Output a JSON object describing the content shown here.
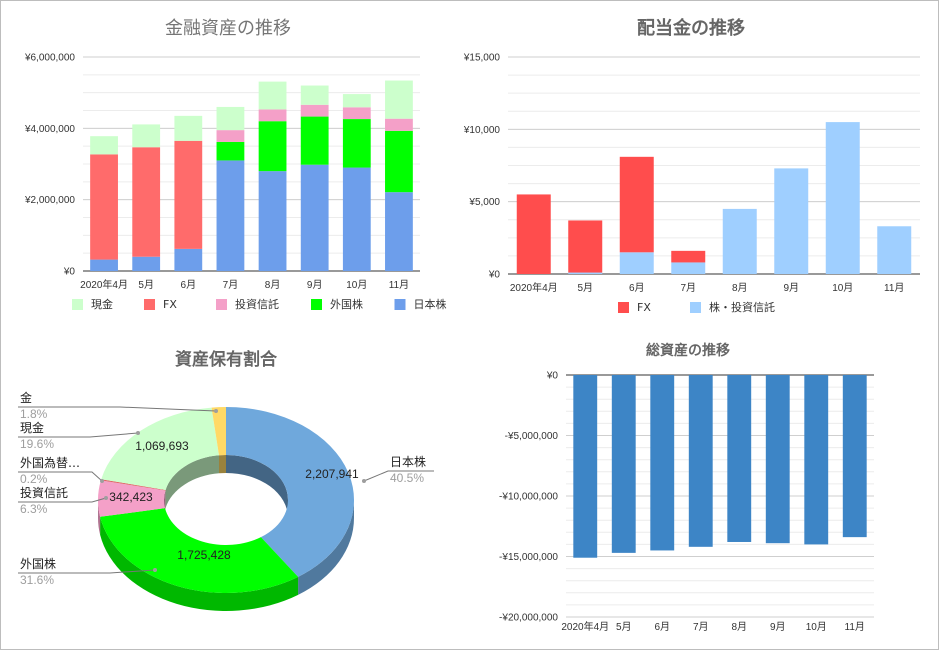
{
  "chart_data": [
    {
      "id": "financial-assets",
      "type": "bar",
      "stacked": true,
      "title": "金融資産の推移",
      "categories": [
        "2020年4月",
        "5月",
        "6月",
        "7月",
        "8月",
        "9月",
        "10月",
        "11月"
      ],
      "series": [
        {
          "name": "日本株",
          "color": "#6d9eeb",
          "values": [
            320000,
            400000,
            620000,
            3100000,
            2800000,
            2980000,
            2900000,
            2210000
          ]
        },
        {
          "name": "外国株",
          "color": "#00ff00",
          "values": [
            0,
            0,
            0,
            520000,
            1400000,
            1350000,
            1360000,
            1720000
          ]
        },
        {
          "name": "投資信託",
          "color": "#f4a0c8",
          "values": [
            0,
            0,
            0,
            330000,
            330000,
            330000,
            330000,
            340000
          ]
        },
        {
          "name": "FX",
          "color": "#ff6b6b",
          "values": [
            2950000,
            3070000,
            3030000,
            0,
            0,
            0,
            0,
            0
          ]
        },
        {
          "name": "現金",
          "color": "#ccffcc",
          "values": [
            510000,
            640000,
            700000,
            650000,
            780000,
            540000,
            370000,
            1070000
          ]
        }
      ],
      "legend_order": [
        "現金",
        "FX",
        "投資信託",
        "外国株",
        "日本株"
      ],
      "yticks": [
        "¥0",
        "¥2,000,000",
        "¥4,000,000",
        "¥6,000,000"
      ],
      "ylim": [
        0,
        6000000
      ],
      "legend": "bottom",
      "grid": true
    },
    {
      "id": "dividends",
      "type": "bar",
      "stacked": true,
      "title": "配当金の推移",
      "categories": [
        "2020年4月",
        "5月",
        "6月",
        "7月",
        "8月",
        "9月",
        "10月",
        "11月"
      ],
      "series": [
        {
          "name": "株・投資信託",
          "color": "#9fcfff",
          "values": [
            0,
            100,
            1500,
            800,
            4500,
            7300,
            10500,
            3300
          ]
        },
        {
          "name": "FX",
          "color": "#ff4d4d",
          "values": [
            5500,
            3600,
            6600,
            800,
            0,
            0,
            0,
            0
          ]
        }
      ],
      "legend_order": [
        "FX",
        "株・投資信託"
      ],
      "yticks": [
        "¥0",
        "¥5,000",
        "¥10,000",
        "¥15,000"
      ],
      "ylim": [
        0,
        15000
      ],
      "legend": "bottom",
      "grid": true
    },
    {
      "id": "asset-allocation",
      "type": "pie",
      "donut": true,
      "title": "資産保有割合",
      "slices": [
        {
          "name": "日本株",
          "value": 2207941,
          "percent": "40.5%",
          "value_label": "2,207,941",
          "color": "#6fa8dc"
        },
        {
          "name": "外国株",
          "value": 1725428,
          "percent": "31.6%",
          "value_label": "1,725,428",
          "color": "#00ff00"
        },
        {
          "name": "投資信託",
          "value": 342423,
          "percent": "6.3%",
          "value_label": "342,423",
          "color": "#f4a0c8"
        },
        {
          "name": "外国為替…",
          "value": 10900,
          "percent": "0.2%",
          "value_label": "",
          "color": "#e06666"
        },
        {
          "name": "現金",
          "value": 1069693,
          "percent": "19.6%",
          "value_label": "1,069,693",
          "color": "#ccffcc"
        },
        {
          "name": "金",
          "value": 98200,
          "percent": "1.8%",
          "value_label": "",
          "color": "#ffd966"
        }
      ]
    },
    {
      "id": "total-assets",
      "type": "bar",
      "title": "総資産の推移",
      "categories": [
        "2020年4月",
        "5月",
        "6月",
        "7月",
        "8月",
        "9月",
        "10月",
        "11月"
      ],
      "color": "#3d85c6",
      "values": [
        -15100000,
        -14700000,
        -14500000,
        -14200000,
        -13800000,
        -13900000,
        -14000000,
        -13400000
      ],
      "yticks": [
        "¥0",
        "-¥5,000,000",
        "-¥10,000,000",
        "-¥15,000,000",
        "-¥20,000,000"
      ],
      "ylim": [
        -20000000,
        0
      ],
      "grid": true
    }
  ]
}
